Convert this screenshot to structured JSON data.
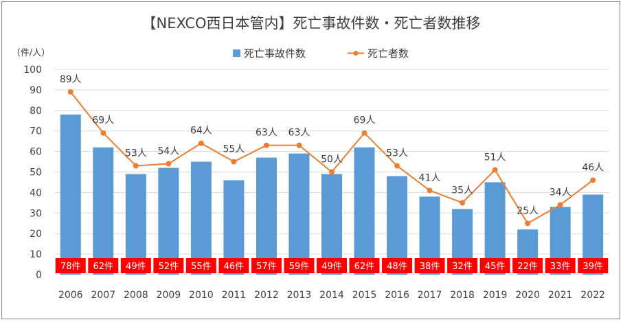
{
  "chart_data": {
    "type": "bar",
    "title": "【NEXCO西日本管内】死亡事故件数・死亡者数推移",
    "unit_label": "（件/人）",
    "categories": [
      "2006",
      "2007",
      "2008",
      "2009",
      "2010",
      "2011",
      "2012",
      "2013",
      "2014",
      "2015",
      "2016",
      "2017",
      "2018",
      "2019",
      "2020",
      "2021",
      "2022"
    ],
    "series": [
      {
        "name": "死亡事故件数",
        "type": "bar",
        "color": "#5b9bd5",
        "values": [
          78,
          62,
          49,
          52,
          55,
          46,
          57,
          59,
          49,
          62,
          48,
          38,
          32,
          45,
          22,
          33,
          39
        ],
        "data_labels": [
          "78件",
          "62件",
          "49件",
          "52件",
          "55件",
          "46件",
          "57件",
          "59件",
          "49件",
          "62件",
          "48件",
          "38件",
          "32件",
          "45件",
          "22件",
          "33件",
          "39件"
        ],
        "label_bg_color": "#ff0000"
      },
      {
        "name": "死亡者数",
        "type": "line",
        "color": "#ed7d31",
        "values": [
          89,
          69,
          53,
          54,
          64,
          55,
          63,
          63,
          50,
          69,
          53,
          41,
          35,
          51,
          25,
          34,
          46
        ],
        "data_labels": [
          "89人",
          "69人",
          "53人",
          "54人",
          "64人",
          "55人",
          "63人",
          "63人",
          "50人",
          "69人",
          "53人",
          "41人",
          "35人",
          "51人",
          "25人",
          "34人",
          "46人"
        ]
      }
    ],
    "ylim": [
      0,
      100
    ],
    "yticks": [
      "0",
      "10",
      "20",
      "30",
      "40",
      "50",
      "60",
      "70",
      "80",
      "90",
      "100"
    ],
    "grid": true,
    "legend_position": "top-center"
  }
}
